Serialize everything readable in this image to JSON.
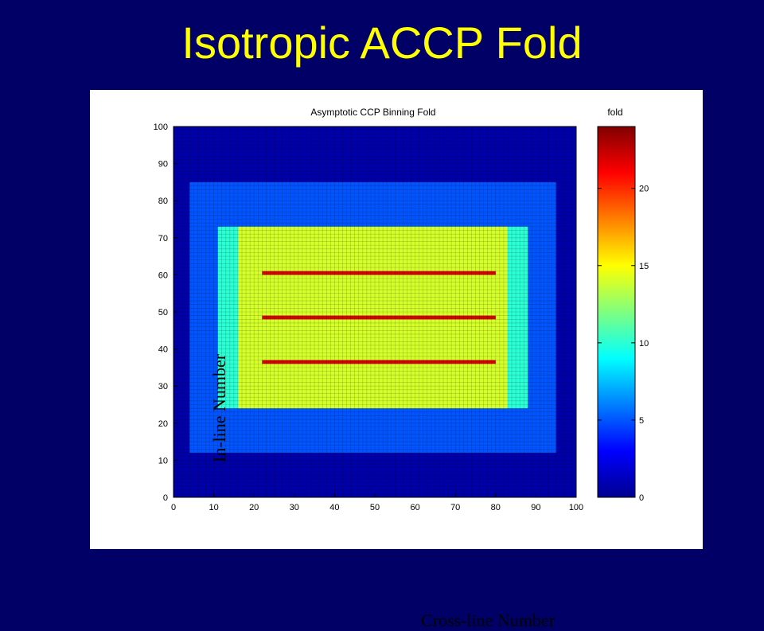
{
  "slide": {
    "title": "Isotropic ACCP Fold"
  },
  "chart_data": {
    "type": "heatmap",
    "title": "Asymptotic CCP Binning Fold",
    "xlabel": "Cross-line Number",
    "ylabel": "In-line Number",
    "xlim": [
      0,
      100
    ],
    "ylim": [
      0,
      100
    ],
    "xticks": [
      "0",
      "10",
      "20",
      "30",
      "40",
      "50",
      "60",
      "70",
      "80",
      "90",
      "100"
    ],
    "yticks": [
      "0",
      "10",
      "20",
      "30",
      "40",
      "50",
      "60",
      "70",
      "80",
      "90",
      "100"
    ],
    "colorbar": {
      "label": "fold",
      "range": [
        0,
        24
      ],
      "ticks": [
        "0",
        "5",
        "10",
        "15",
        "20"
      ],
      "colormap": "jet"
    },
    "grid": true,
    "regions": [
      {
        "x": [
          0,
          100
        ],
        "y": [
          0,
          100
        ],
        "fold": 1
      },
      {
        "x": [
          4,
          95
        ],
        "y": [
          12,
          85
        ],
        "fold": 5
      },
      {
        "x": [
          11,
          88
        ],
        "y": [
          24,
          73
        ],
        "fold": 10
      },
      {
        "x": [
          16,
          83
        ],
        "y": [
          24,
          73
        ],
        "fold": 14
      }
    ],
    "high_fold_rows": [
      {
        "y": 36.5,
        "x": [
          22,
          80
        ],
        "fold": 22
      },
      {
        "y": 48.5,
        "x": [
          22,
          80
        ],
        "fold": 22
      },
      {
        "y": 60.5,
        "x": [
          22,
          80
        ],
        "fold": 22
      }
    ],
    "peak_fold": 24
  }
}
